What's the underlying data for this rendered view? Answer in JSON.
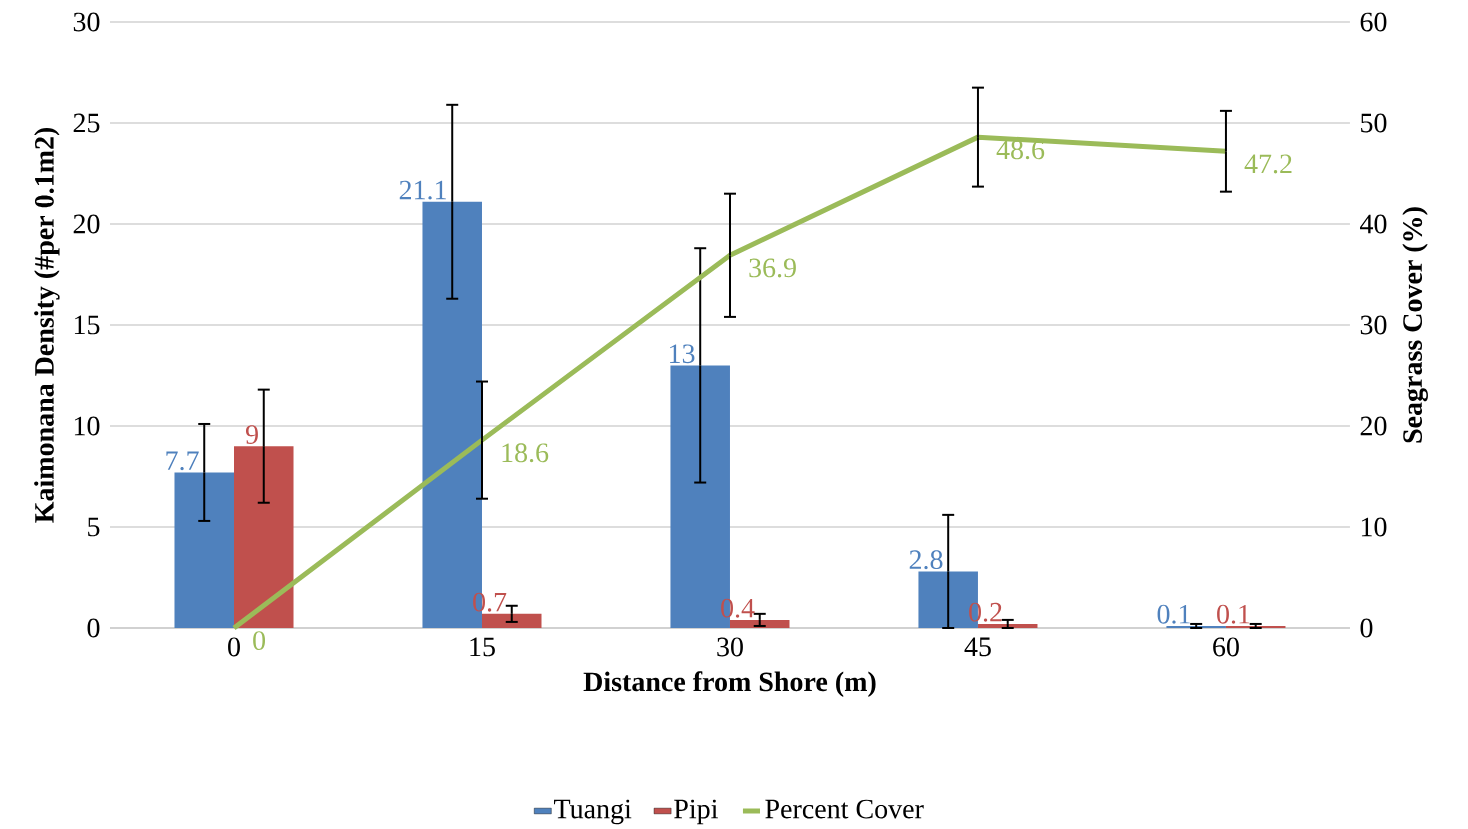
{
  "chart_data": {
    "type": "bar",
    "xlabel": "Distance from Shore (m)",
    "ylabel": "Kaimonana Density (#per 0.1m2)",
    "y2label": "Seagrass Cover (%)",
    "categories": [
      "0",
      "15",
      "30",
      "45",
      "60"
    ],
    "series": [
      {
        "name": "Tuangi",
        "color": "#4f81bd",
        "values": [
          7.7,
          21.1,
          13,
          2.8,
          0.1
        ],
        "errors": [
          2.4,
          4.8,
          5.8,
          2.8,
          0.1
        ]
      },
      {
        "name": "Pipi",
        "color": "#c0504d",
        "values": [
          9,
          0.7,
          0.4,
          0.2,
          0.1
        ],
        "errors": [
          2.8,
          0.4,
          0.3,
          0.2,
          0.1
        ]
      },
      {
        "name": "Percent Cover",
        "type": "line",
        "axis": "y2",
        "color": "#9bbb59",
        "values": [
          0,
          18.6,
          36.9,
          48.6,
          47.2
        ],
        "errors": [
          null,
          5.8,
          6.1,
          4.9,
          4.0
        ]
      }
    ],
    "ylim": [
      0,
      30
    ],
    "yticks": [
      0,
      5,
      10,
      15,
      20,
      25,
      30
    ],
    "y2lim": [
      0,
      60
    ],
    "y2ticks": [
      0,
      10,
      20,
      30,
      40,
      50,
      60
    ],
    "grid": "y",
    "legend": "bottom",
    "data_labels": true
  }
}
